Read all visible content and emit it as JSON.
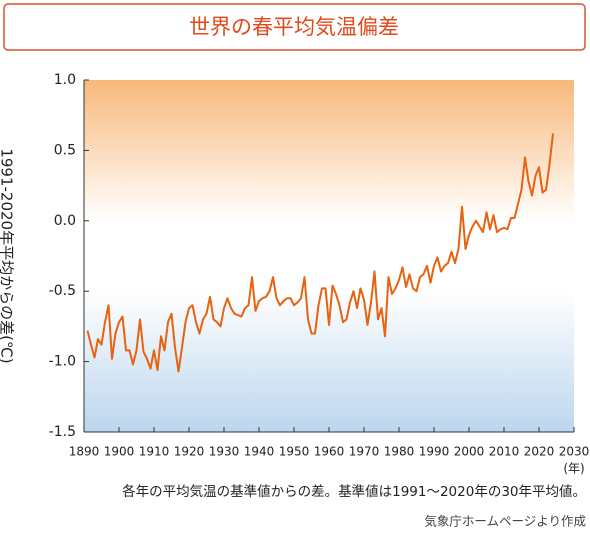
{
  "chart_data": {
    "type": "line",
    "title": "世界の春平均気温偏差",
    "ylabel": "1991-2020年平均からの差(℃)",
    "xlabel": "(年)",
    "footnote": "各年の平均気温の基準値からの差。基準値は1991～2020年の30年平均値。",
    "source": "気象庁ホームページより作成",
    "color": "#e8620f",
    "x": [
      1891,
      1892,
      1893,
      1894,
      1895,
      1896,
      1897,
      1898,
      1899,
      1900,
      1901,
      1902,
      1903,
      1904,
      1905,
      1906,
      1907,
      1908,
      1909,
      1910,
      1911,
      1912,
      1913,
      1914,
      1915,
      1916,
      1917,
      1918,
      1919,
      1920,
      1921,
      1922,
      1923,
      1924,
      1925,
      1926,
      1927,
      1928,
      1929,
      1930,
      1931,
      1932,
      1933,
      1934,
      1935,
      1936,
      1937,
      1938,
      1939,
      1940,
      1941,
      1942,
      1943,
      1944,
      1945,
      1946,
      1947,
      1948,
      1949,
      1950,
      1951,
      1952,
      1953,
      1954,
      1955,
      1956,
      1957,
      1958,
      1959,
      1960,
      1961,
      1962,
      1963,
      1964,
      1965,
      1966,
      1967,
      1968,
      1969,
      1970,
      1971,
      1972,
      1973,
      1974,
      1975,
      1976,
      1977,
      1978,
      1979,
      1980,
      1981,
      1982,
      1983,
      1984,
      1985,
      1986,
      1987,
      1988,
      1989,
      1990,
      1991,
      1992,
      1993,
      1994,
      1995,
      1996,
      1997,
      1998,
      1999,
      2000,
      2001,
      2002,
      2003,
      2004,
      2005,
      2006,
      2007,
      2008,
      2009,
      2010,
      2011,
      2012,
      2013,
      2014,
      2015,
      2016,
      2017,
      2018,
      2019,
      2020,
      2021,
      2022,
      2023,
      2024
    ],
    "values": [
      -0.78,
      -0.88,
      -0.97,
      -0.84,
      -0.88,
      -0.72,
      -0.6,
      -0.98,
      -0.8,
      -0.72,
      -0.68,
      -0.92,
      -0.92,
      -1.02,
      -0.92,
      -0.7,
      -0.93,
      -0.98,
      -1.05,
      -0.92,
      -1.06,
      -0.82,
      -0.92,
      -0.72,
      -0.66,
      -0.9,
      -1.07,
      -0.9,
      -0.72,
      -0.62,
      -0.6,
      -0.72,
      -0.8,
      -0.7,
      -0.66,
      -0.54,
      -0.7,
      -0.72,
      -0.75,
      -0.62,
      -0.55,
      -0.62,
      -0.66,
      -0.67,
      -0.68,
      -0.62,
      -0.6,
      -0.4,
      -0.64,
      -0.57,
      -0.55,
      -0.54,
      -0.5,
      -0.4,
      -0.55,
      -0.6,
      -0.57,
      -0.55,
      -0.55,
      -0.6,
      -0.58,
      -0.55,
      -0.4,
      -0.7,
      -0.8,
      -0.8,
      -0.6,
      -0.48,
      -0.48,
      -0.74,
      -0.46,
      -0.52,
      -0.6,
      -0.72,
      -0.7,
      -0.58,
      -0.5,
      -0.62,
      -0.48,
      -0.56,
      -0.74,
      -0.58,
      -0.36,
      -0.7,
      -0.62,
      -0.82,
      -0.4,
      -0.52,
      -0.48,
      -0.42,
      -0.33,
      -0.47,
      -0.38,
      -0.48,
      -0.5,
      -0.4,
      -0.38,
      -0.32,
      -0.44,
      -0.32,
      -0.26,
      -0.36,
      -0.32,
      -0.3,
      -0.22,
      -0.3,
      -0.2,
      0.1,
      -0.2,
      -0.1,
      -0.04,
      0.0,
      -0.04,
      -0.08,
      0.06,
      -0.06,
      0.04,
      -0.08,
      -0.06,
      -0.05,
      -0.06,
      0.02,
      0.02,
      0.12,
      0.22,
      0.45,
      0.28,
      0.18,
      0.32,
      0.38,
      0.2,
      0.22,
      0.4,
      0.62
    ],
    "xlim": [
      1890,
      2030
    ],
    "xticks": [
      1890,
      1900,
      1910,
      1920,
      1930,
      1940,
      1950,
      1960,
      1970,
      1980,
      1990,
      2000,
      2010,
      2020,
      2030
    ],
    "ylim": [
      -1.5,
      1
    ],
    "yticks": [
      {
        "value": 1,
        "label": "1.0"
      },
      0.5,
      {
        "value": 0,
        "label": "0.0"
      },
      -0.5,
      {
        "value": -1,
        "label": "-1.0"
      },
      -1.5
    ]
  }
}
